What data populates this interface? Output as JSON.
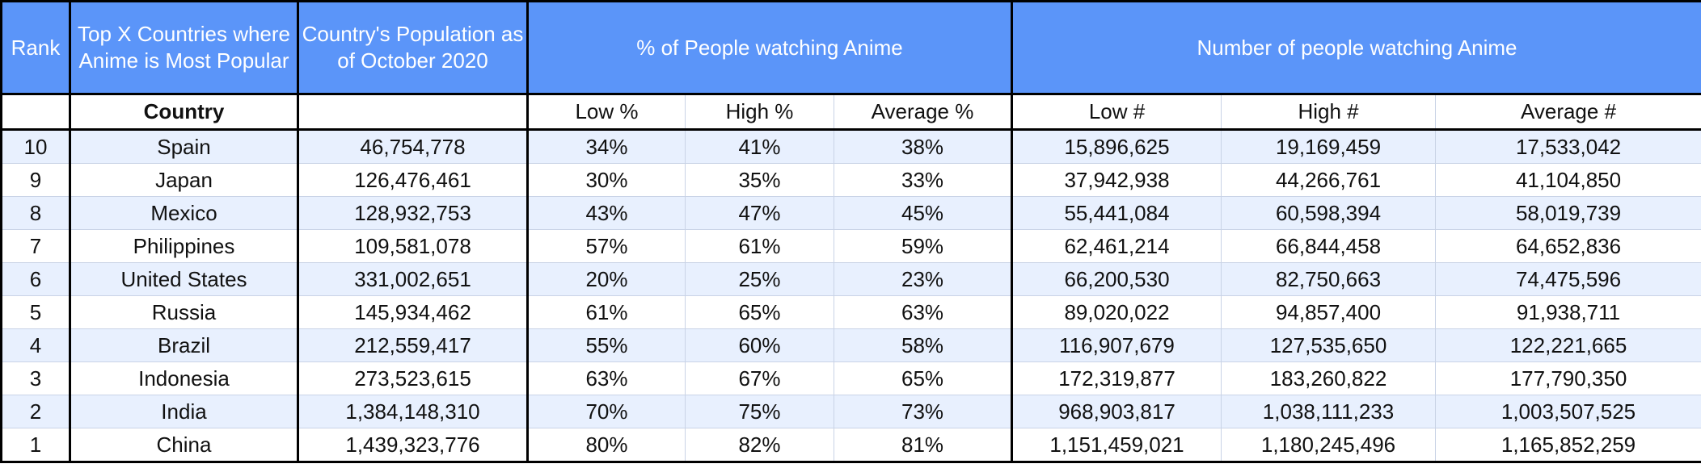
{
  "headers": {
    "rank": "Rank",
    "country_group": "Top X Countries where Anime is Most Popular",
    "population": "Country's Population as of October 2020",
    "pct_group": "% of People watching Anime",
    "num_group": "Number of people watching Anime"
  },
  "subheaders": {
    "country": "Country",
    "low_pct": "Low %",
    "high_pct": "High %",
    "avg_pct": "Average %",
    "low_num": "Low #",
    "high_num": "High #",
    "avg_num": "Average #"
  },
  "rows": [
    {
      "rank": "10",
      "country": "Spain",
      "population": "46,754,778",
      "low_pct": "34%",
      "high_pct": "41%",
      "avg_pct": "38%",
      "low_num": "15,896,625",
      "high_num": "19,169,459",
      "avg_num": "17,533,042"
    },
    {
      "rank": "9",
      "country": "Japan",
      "population": "126,476,461",
      "low_pct": "30%",
      "high_pct": "35%",
      "avg_pct": "33%",
      "low_num": "37,942,938",
      "high_num": "44,266,761",
      "avg_num": "41,104,850"
    },
    {
      "rank": "8",
      "country": "Mexico",
      "population": "128,932,753",
      "low_pct": "43%",
      "high_pct": "47%",
      "avg_pct": "45%",
      "low_num": "55,441,084",
      "high_num": "60,598,394",
      "avg_num": "58,019,739"
    },
    {
      "rank": "7",
      "country": "Philippines",
      "population": "109,581,078",
      "low_pct": "57%",
      "high_pct": "61%",
      "avg_pct": "59%",
      "low_num": "62,461,214",
      "high_num": "66,844,458",
      "avg_num": "64,652,836"
    },
    {
      "rank": "6",
      "country": "United States",
      "population": "331,002,651",
      "low_pct": "20%",
      "high_pct": "25%",
      "avg_pct": "23%",
      "low_num": "66,200,530",
      "high_num": "82,750,663",
      "avg_num": "74,475,596"
    },
    {
      "rank": "5",
      "country": "Russia",
      "population": "145,934,462",
      "low_pct": "61%",
      "high_pct": "65%",
      "avg_pct": "63%",
      "low_num": "89,020,022",
      "high_num": "94,857,400",
      "avg_num": "91,938,711"
    },
    {
      "rank": "4",
      "country": "Brazil",
      "population": "212,559,417",
      "low_pct": "55%",
      "high_pct": "60%",
      "avg_pct": "58%",
      "low_num": "116,907,679",
      "high_num": "127,535,650",
      "avg_num": "122,221,665"
    },
    {
      "rank": "3",
      "country": "Indonesia",
      "population": "273,523,615",
      "low_pct": "63%",
      "high_pct": "67%",
      "avg_pct": "65%",
      "low_num": "172,319,877",
      "high_num": "183,260,822",
      "avg_num": "177,790,350"
    },
    {
      "rank": "2",
      "country": "India",
      "population": "1,384,148,310",
      "low_pct": "70%",
      "high_pct": "75%",
      "avg_pct": "73%",
      "low_num": "968,903,817",
      "high_num": "1,038,111,233",
      "avg_num": "1,003,507,525"
    },
    {
      "rank": "1",
      "country": "China",
      "population": "1,439,323,776",
      "low_pct": "80%",
      "high_pct": "82%",
      "avg_pct": "81%",
      "low_num": "1,151,459,021",
      "high_num": "1,180,245,496",
      "avg_num": "1,165,852,259"
    }
  ],
  "colors": {
    "header_bg": "#5b95f9",
    "header_text": "#ffffff",
    "stripe_bg": "#e8f0fe",
    "border": "#000000"
  }
}
